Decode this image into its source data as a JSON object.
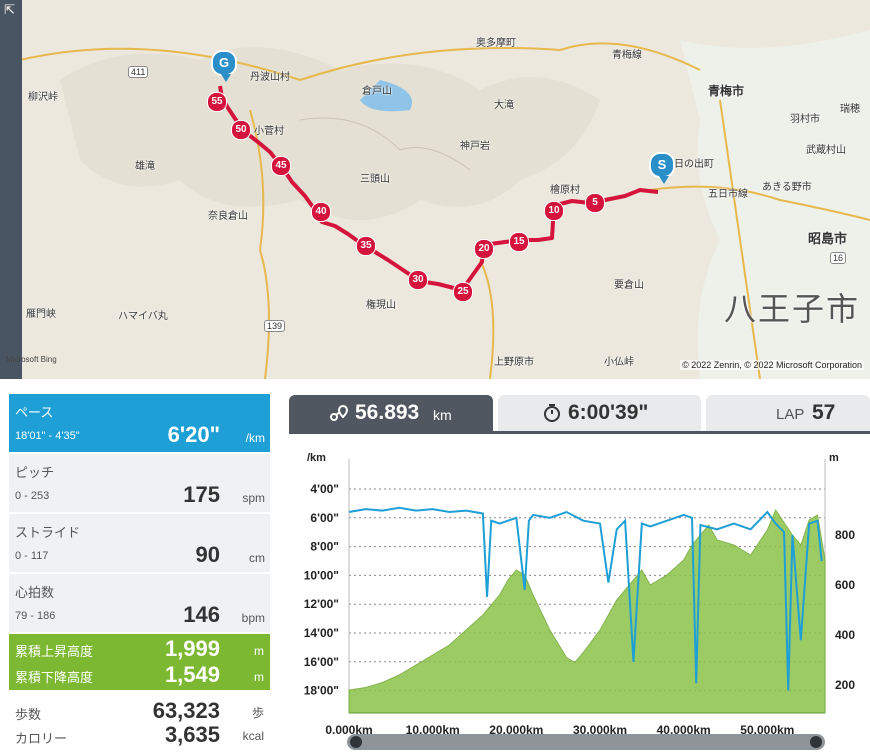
{
  "map": {
    "credit_left": "Microsoft Bing",
    "credit_right": "© 2022 Zenrin, © 2022 Microsoft Corporation",
    "goal_marker": "G",
    "start_marker": "S",
    "labels": [
      "丹波山村",
      "小菅村",
      "奥多摩町",
      "青梅市",
      "倉戸山",
      "大滝",
      "神戸岩",
      "三頭山",
      "雄滝",
      "檜原村",
      "日の出町",
      "五日市線",
      "あきる野市",
      "羽村市",
      "瑞穂",
      "武蔵村山",
      "昭島市",
      "八王子市",
      "奈良倉山",
      "権現山",
      "要倉山",
      "上野原市",
      "小仏峠",
      "ハマイバ丸",
      "柳沢峠",
      "青梅線",
      "雁門峡",
      "411",
      "139",
      "16"
    ],
    "km_markers": [
      "5",
      "10",
      "15",
      "20",
      "25",
      "30",
      "35",
      "40",
      "45",
      "50",
      "55"
    ],
    "route_color": "#d4143c"
  },
  "stats": {
    "pace": {
      "name": "ペース",
      "range": "18'01\" - 4'35\"",
      "value": "6'20\"",
      "unit": "/km"
    },
    "pitch": {
      "name": "ピッチ",
      "range": "0 - 253",
      "value": "175",
      "unit": "spm"
    },
    "stride": {
      "name": "ストライド",
      "range": "0 - 117",
      "value": "90",
      "unit": "cm"
    },
    "heart": {
      "name": "心拍数",
      "range": "79 - 186",
      "value": "146",
      "unit": "bpm"
    },
    "ascent": {
      "name": "累積上昇高度",
      "value": "1,999",
      "unit": "m"
    },
    "descent": {
      "name": "累積下降高度",
      "value": "1,549",
      "unit": "m"
    },
    "steps": {
      "name": "歩数",
      "value": "63,323",
      "unit": "歩"
    },
    "calories": {
      "name": "カロリー",
      "value": "3,635",
      "unit": "kcal"
    }
  },
  "tabs": {
    "distance": {
      "value": "56.893",
      "unit": "km"
    },
    "time": {
      "value": "6:00'39\""
    },
    "lap": {
      "label": "LAP",
      "value": "57"
    }
  },
  "chart_data": {
    "type": "line",
    "xlabel": "",
    "x_ticks": [
      "0.000km",
      "10.000km",
      "20.000km",
      "30.000km",
      "40.000km",
      "50.000km"
    ],
    "xlim": [
      0,
      56.893
    ],
    "left_axis": {
      "label": "/km",
      "ticks": [
        "4'00\"",
        "6'00\"",
        "8'00\"",
        "10'00\"",
        "12'00\"",
        "14'00\"",
        "16'00\"",
        "18'00\""
      ]
    },
    "right_axis": {
      "label": "m",
      "ticks": [
        "800",
        "600",
        "400",
        "200"
      ]
    },
    "pace_min_per_km_ticks": [
      4,
      6,
      8,
      10,
      12,
      14,
      16,
      18
    ],
    "elevation_ticks": [
      800,
      600,
      400,
      200
    ],
    "series": [
      {
        "kind": "elevation",
        "color": "#8bc34a",
        "x": [
          0,
          2,
          4,
          6,
          8,
          10,
          12,
          14,
          16,
          18,
          19,
          20,
          21,
          22,
          24,
          26,
          27,
          28,
          30,
          32,
          34,
          35,
          36,
          38,
          40,
          41,
          42,
          43,
          44,
          46,
          48,
          50,
          51,
          52,
          53,
          54,
          55,
          56,
          56.9
        ],
        "y": [
          180,
          190,
          210,
          240,
          280,
          320,
          360,
          420,
          480,
          560,
          620,
          660,
          640,
          560,
          420,
          310,
          290,
          330,
          420,
          540,
          620,
          660,
          600,
          640,
          700,
          760,
          800,
          840,
          780,
          760,
          720,
          820,
          900,
          850,
          800,
          760,
          860,
          880,
          700
        ]
      },
      {
        "kind": "pace",
        "color": "#1e9fd6",
        "x": [
          0,
          2,
          4,
          6,
          8,
          10,
          12,
          14,
          16,
          16.5,
          17,
          18,
          20,
          21,
          21.5,
          22,
          24,
          26,
          28,
          30,
          31,
          32,
          33,
          34,
          35,
          36,
          38,
          40,
          41,
          41.5,
          42,
          44,
          46,
          48,
          50,
          51,
          52,
          52.5,
          53,
          54,
          55,
          56,
          56.5
        ],
        "y": [
          5.6,
          5.4,
          5.5,
          5.3,
          5.5,
          5.4,
          5.6,
          5.5,
          5.7,
          11.5,
          6.2,
          6.4,
          6.0,
          11.0,
          6.2,
          5.8,
          6.0,
          5.6,
          6.2,
          6.4,
          10.5,
          6.8,
          6.2,
          16.0,
          6.4,
          6.6,
          6.2,
          5.8,
          6.0,
          17.5,
          6.5,
          6.8,
          6.4,
          6.8,
          5.6,
          6.4,
          7.0,
          18.0,
          7.2,
          14.5,
          6.4,
          6.2,
          9.0
        ]
      }
    ]
  }
}
